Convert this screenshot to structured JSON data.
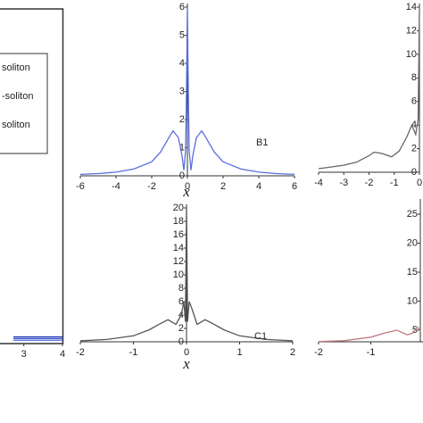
{
  "chart_data": [
    {
      "type": "line",
      "xlim": [
        2.73,
        4
      ],
      "ylim": [
        0,
        1
      ],
      "xticks": [
        3,
        4
      ],
      "series": [
        {
          "name": "soliton",
          "color": "#1a33b3",
          "x": [
            2.73,
            3,
            3.5,
            4
          ],
          "values": [
            0.02,
            0.02,
            0.02,
            0.02
          ]
        },
        {
          "name": "-soliton",
          "color": "#3350cc",
          "x": [
            2.73,
            3,
            3.5,
            4
          ],
          "values": [
            0.015,
            0.015,
            0.015,
            0.015
          ]
        },
        {
          "name": "soliton",
          "color": "#5a78e0",
          "x": [
            2.73,
            3,
            3.5,
            4
          ],
          "values": [
            0.01,
            0.01,
            0.01,
            0.01
          ]
        }
      ]
    },
    {
      "type": "line",
      "xlim": [
        -6,
        6
      ],
      "ylim": [
        0,
        6
      ],
      "xticks": [
        -6,
        -4,
        -2,
        0,
        2,
        4,
        6
      ],
      "yticks": [
        0,
        1,
        2,
        3,
        4,
        5,
        6
      ],
      "xlabel": "x",
      "annotation": "B1",
      "series": [
        {
          "color": "#5a6ee0",
          "x": [
            -6,
            -5,
            -4,
            -3,
            -2,
            -1.5,
            -1,
            -0.8,
            -0.5,
            -0.3,
            -0.2,
            -0.1,
            -0.05,
            0,
            0.05,
            0.1,
            0.2,
            0.3,
            0.5,
            0.8,
            1,
            1.5,
            2,
            3,
            4,
            5,
            6
          ],
          "values": [
            0.05,
            0.08,
            0.13,
            0.24,
            0.5,
            0.85,
            1.4,
            1.6,
            1.35,
            0.7,
            0.2,
            0.9,
            3,
            6,
            3,
            0.9,
            0.2,
            0.7,
            1.35,
            1.6,
            1.4,
            0.85,
            0.5,
            0.24,
            0.13,
            0.08,
            0.05
          ]
        }
      ]
    },
    {
      "type": "line",
      "xlim": [
        -4,
        0
      ],
      "ylim": [
        0,
        14
      ],
      "xticks": [
        -4,
        -3,
        -2,
        -1,
        0
      ],
      "yticks": [
        0,
        2,
        4,
        6,
        8,
        10,
        12,
        14
      ],
      "series": [
        {
          "color": "#666666",
          "x": [
            -4,
            -3.5,
            -3,
            -2.5,
            -2,
            -1.8,
            -1.5,
            -1.1,
            -0.8,
            -0.5,
            -0.3,
            -0.15,
            -0.05,
            0
          ],
          "values": [
            0.3,
            0.45,
            0.6,
            0.85,
            1.4,
            1.7,
            1.6,
            1.3,
            1.8,
            3,
            4,
            3.2,
            4.5,
            14
          ]
        }
      ]
    },
    {
      "type": "line",
      "xlim": [
        -2,
        2
      ],
      "ylim": [
        0,
        20
      ],
      "xticks": [
        -2,
        -1,
        0,
        1,
        2
      ],
      "yticks": [
        0,
        2,
        4,
        6,
        8,
        10,
        12,
        14,
        16,
        18,
        20
      ],
      "xlabel": "x",
      "annotation": "C1",
      "series": [
        {
          "color": "#555555",
          "x": [
            -2,
            -1.5,
            -1,
            -0.7,
            -0.5,
            -0.35,
            -0.2,
            -0.1,
            -0.05,
            -0.02,
            0,
            0.02,
            0.05,
            0.1,
            0.2,
            0.35,
            0.5,
            0.7,
            1,
            1.5,
            2
          ],
          "values": [
            0.15,
            0.35,
            0.9,
            1.8,
            2.7,
            3.3,
            2.6,
            4,
            6,
            3,
            20,
            3,
            6,
            5,
            2.6,
            3.3,
            2.7,
            1.8,
            0.9,
            0.35,
            0.15
          ]
        }
      ]
    },
    {
      "type": "line",
      "xlim": [
        -2,
        0
      ],
      "ylim": [
        3,
        27
      ],
      "xticks": [
        -2,
        -1
      ],
      "yticks": [
        5,
        10,
        15,
        20,
        25
      ],
      "series": [
        {
          "color": "#c07a80",
          "x": [
            -2,
            -1.5,
            -1,
            -0.7,
            -0.5,
            -0.3,
            -0.2,
            -0.1,
            -0.05
          ],
          "values": [
            3.05,
            3.2,
            3.8,
            4.6,
            5,
            4.2,
            4.5,
            5.5,
            4.8
          ]
        }
      ]
    }
  ]
}
